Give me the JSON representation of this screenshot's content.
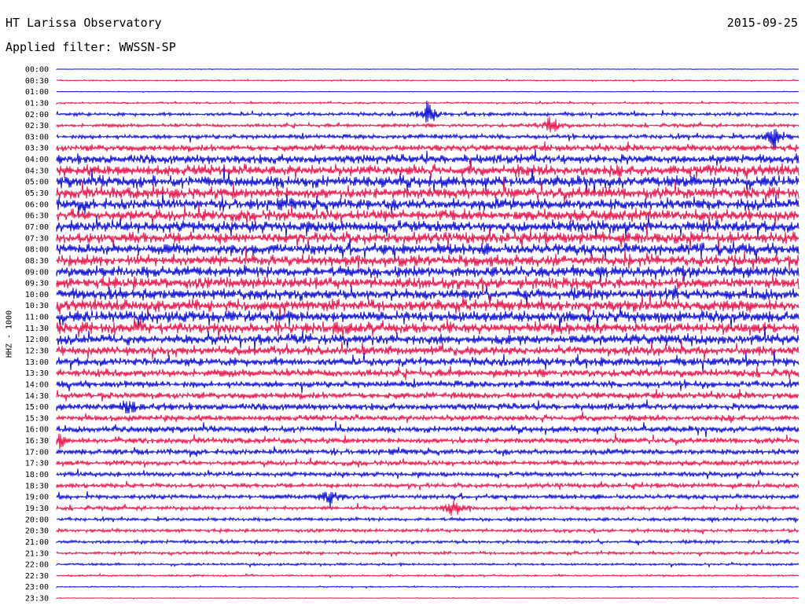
{
  "header": {
    "station": "HT Larissa Observatory",
    "date": "2015-09-25",
    "filter": "Applied filter: WWSSN-SP"
  },
  "chart_data": {
    "type": "line",
    "chart_kind": "helicorder seismogram",
    "channel_label": "HHZ - 1000",
    "row_labels": [
      "00:00",
      "00:30",
      "01:00",
      "01:30",
      "02:00",
      "02:30",
      "03:00",
      "03:30",
      "04:00",
      "04:30",
      "05:00",
      "05:30",
      "06:00",
      "06:30",
      "07:00",
      "07:30",
      "08:00",
      "08:30",
      "09:00",
      "09:30",
      "10:00",
      "10:30",
      "11:00",
      "11:30",
      "12:00",
      "12:30",
      "13:00",
      "13:30",
      "14:00",
      "14:30",
      "15:00",
      "15:30",
      "16:00",
      "16:30",
      "17:00",
      "17:30",
      "18:00",
      "18:30",
      "19:00",
      "19:30",
      "20:00",
      "20:30",
      "21:00",
      "21:30",
      "22:00",
      "22:30",
      "23:00",
      "23:30"
    ],
    "row_colors": [
      "#1010d8",
      "#e8184c"
    ],
    "row_minutes": 30,
    "relative_amplitude": [
      0.04,
      0.1,
      0.05,
      0.15,
      0.3,
      0.3,
      0.4,
      0.6,
      0.8,
      1.0,
      1.0,
      1.0,
      1.0,
      1.0,
      1.0,
      1.0,
      1.0,
      1.0,
      1.0,
      1.0,
      1.0,
      1.0,
      1.0,
      1.0,
      0.9,
      0.8,
      0.75,
      0.7,
      0.6,
      0.6,
      0.6,
      0.55,
      0.55,
      0.5,
      0.5,
      0.45,
      0.4,
      0.4,
      0.4,
      0.35,
      0.3,
      0.3,
      0.3,
      0.25,
      0.2,
      0.15,
      0.1,
      0.05
    ],
    "events": [
      {
        "time": "02:00",
        "minute": 15,
        "strength": 0.8
      },
      {
        "time": "02:30",
        "minute": 20,
        "strength": 0.7
      },
      {
        "time": "03:00",
        "minute": 29,
        "strength": 0.9
      },
      {
        "time": "15:00",
        "minute": 3,
        "strength": 0.6
      },
      {
        "time": "16:30",
        "minute": 0,
        "strength": 0.6
      },
      {
        "time": "19:00",
        "minute": 11,
        "strength": 0.7
      },
      {
        "time": "19:30",
        "minute": 16,
        "strength": 0.7
      }
    ],
    "grid": false
  }
}
